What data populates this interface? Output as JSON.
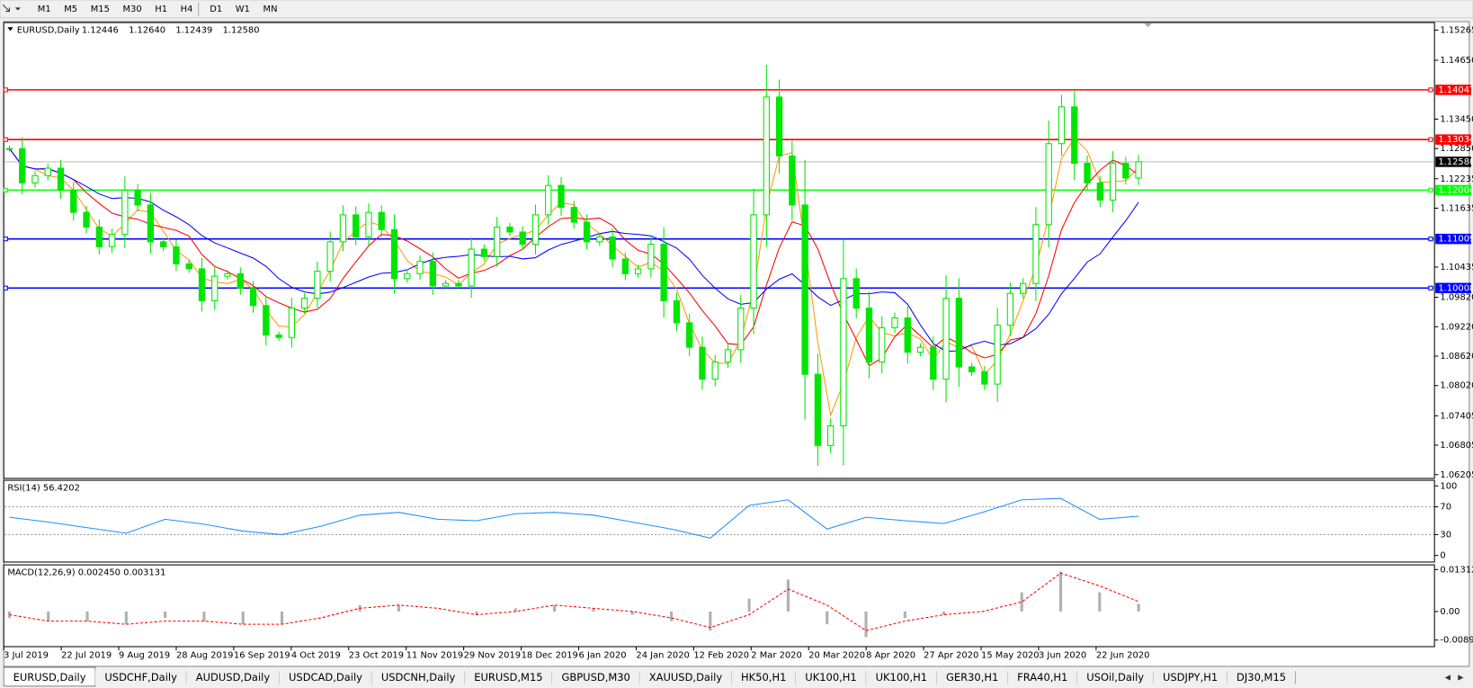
{
  "toolbar": {
    "timeframes": [
      "M1",
      "M5",
      "M15",
      "M30",
      "H1",
      "H4",
      "D1",
      "W1",
      "MN"
    ]
  },
  "chart_data": [
    {
      "type": "candlestick",
      "title": "EURUSD,Daily",
      "ohlc": [
        "1.12446",
        "1.12640",
        "1.12439",
        "1.12580"
      ],
      "color": "#00e600",
      "closes": [
        1.1285,
        1.1215,
        1.123,
        1.1245,
        1.12,
        1.1155,
        1.1125,
        1.1085,
        1.111,
        1.12,
        1.117,
        1.1095,
        1.1085,
        1.105,
        1.104,
        1.0975,
        1.1025,
        1.103,
        1.1,
        1.0965,
        1.0905,
        1.09,
        1.096,
        1.098,
        1.1035,
        1.1095,
        1.115,
        1.1105,
        1.1155,
        1.112,
        1.102,
        1.103,
        1.1055,
        1.1005,
        1.101,
        1.1005,
        1.108,
        1.1065,
        1.1125,
        1.1115,
        1.109,
        1.115,
        1.121,
        1.1165,
        1.1135,
        1.1095,
        1.1105,
        1.106,
        1.103,
        1.104,
        1.109,
        1.0975,
        1.093,
        1.088,
        1.0815,
        1.085,
        1.0875,
        1.096,
        1.115,
        1.139,
        1.127,
        1.117,
        1.0825,
        1.068,
        1.072,
        1.102,
        1.096,
        1.085,
        1.092,
        1.094,
        1.087,
        1.088,
        1.0815,
        1.098,
        1.084,
        1.083,
        1.0805,
        1.0925,
        1.099,
        1.101,
        1.113,
        1.1295,
        1.137,
        1.1255,
        1.1215,
        1.118,
        1.1255,
        1.1225,
        1.1258
      ],
      "ma_colors": [
        "#ff9900",
        "#ff0000",
        "#0000ff"
      ],
      "ylim": [
        1.06205,
        1.15265
      ],
      "yticks": [
        {
          "value": 1.15265,
          "label": "1.15265"
        },
        {
          "value": 1.1465,
          "label": "1.14650"
        },
        {
          "value": 1.1345,
          "label": "1.13450"
        },
        {
          "value": 1.1285,
          "label": "1.12850"
        },
        {
          "value": 1.12235,
          "label": "1.12235"
        },
        {
          "value": 1.11635,
          "label": "1.11635"
        },
        {
          "value": 1.10435,
          "label": "1.10435"
        },
        {
          "value": 1.0982,
          "label": "1.09820"
        },
        {
          "value": 1.0922,
          "label": "1.09220"
        },
        {
          "value": 1.0862,
          "label": "1.08620"
        },
        {
          "value": 1.0802,
          "label": "1.08020"
        },
        {
          "value": 1.07405,
          "label": "1.07405"
        },
        {
          "value": 1.06805,
          "label": "1.06805"
        },
        {
          "value": 1.06205,
          "label": "1.06205"
        }
      ],
      "levels": [
        {
          "value": 1.14047,
          "color": "#ff0000"
        },
        {
          "value": 1.13034,
          "color": "#ff0000"
        },
        {
          "value": 1.12004,
          "color": "#00ff00"
        },
        {
          "value": 1.11009,
          "color": "#0000ff"
        },
        {
          "value": 1.10008,
          "color": "#0000ff"
        }
      ],
      "last_price": {
        "value": 1.1258,
        "label": "1.12580"
      },
      "x_labels": [
        "3 Jul 2019",
        "22 Jul 2019",
        "9 Aug 2019",
        "28 Aug 2019",
        "16 Sep 2019",
        "4 Oct 2019",
        "23 Oct 2019",
        "11 Nov 2019",
        "29 Nov 2019",
        "18 Dec 2019",
        "6 Jan 2020",
        "24 Jan 2020",
        "12 Feb 2020",
        "2 Mar 2020",
        "20 Mar 2020",
        "8 Apr 2020",
        "27 Apr 2020",
        "15 May 2020",
        "3 Jun 2020",
        "22 Jun 2020"
      ]
    },
    {
      "type": "line",
      "title": "RSI(14) 56.4202",
      "color": "#1e90ff",
      "values": [
        55,
        48,
        40,
        32,
        52,
        45,
        35,
        30,
        42,
        58,
        62,
        52,
        50,
        60,
        62,
        58,
        48,
        38,
        25,
        72,
        80,
        38,
        55,
        50,
        46,
        62,
        80,
        82,
        52,
        56.42
      ],
      "ylim": [
        0,
        100
      ],
      "yticks": [
        100,
        70,
        30,
        0
      ],
      "levels": [
        70,
        30
      ]
    },
    {
      "type": "histogram",
      "title": "MACD(12,26,9) 0.002450 0.003131",
      "color": "#b0b0b0",
      "signal_color": "#ff0000",
      "values": [
        -0.002,
        -0.003,
        -0.003,
        -0.004,
        -0.002,
        -0.003,
        -0.004,
        -0.004,
        0,
        0.002,
        0.002,
        0,
        -0.001,
        0.001,
        0.002,
        0.001,
        -0.001,
        -0.003,
        -0.006,
        0.004,
        0.01,
        -0.004,
        -0.008,
        -0.002,
        -0.001,
        0,
        0.006,
        0.0125,
        0.006,
        0.00245
      ],
      "signal": [
        -0.001,
        -0.003,
        -0.003,
        -0.004,
        -0.003,
        -0.003,
        -0.004,
        -0.004,
        -0.002,
        0.001,
        0.002,
        0.001,
        -0.001,
        0,
        0.002,
        0.001,
        0,
        -0.002,
        -0.005,
        -0.001,
        0.007,
        0.002,
        -0.006,
        -0.003,
        -0.001,
        0,
        0.003,
        0.012,
        0.008,
        0.003131
      ],
      "ylim": [
        -0.008933,
        0.013121
      ],
      "yticks": [
        0.013121,
        {
          "value": 0,
          "label": "0.00"
        },
        -0.008933
      ]
    }
  ],
  "tabs": [
    "EURUSD,Daily",
    "USDCHF,Daily",
    "AUDUSD,Daily",
    "USDCAD,Daily",
    "USDCNH,Daily",
    "EURUSD,M15",
    "GBPUSD,M30",
    "XAUUSD,Daily",
    "HK50,H1",
    "UK100,H1",
    "UK100,H1",
    "GER30,H1",
    "FRA40,H1",
    "USOil,Daily",
    "USDJPY,H1",
    "DJ30,M15"
  ],
  "active_tab": 0
}
